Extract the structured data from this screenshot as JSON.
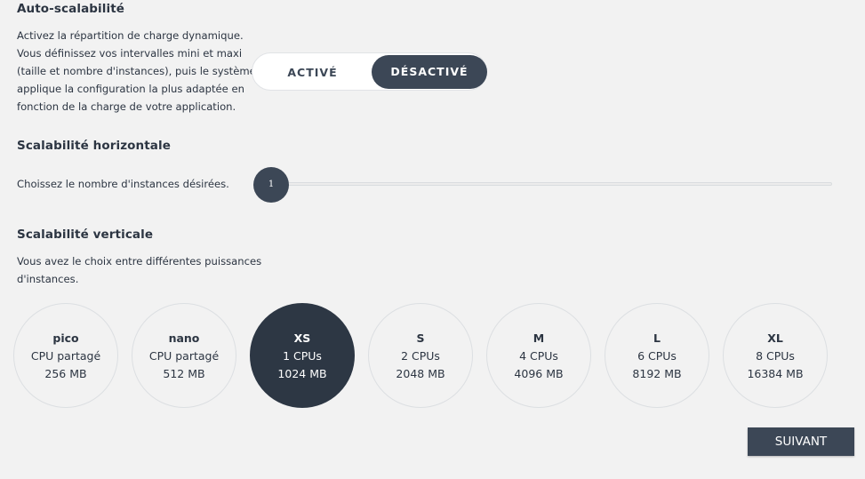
{
  "auto": {
    "title": "Auto-scalabilité",
    "desc_lines": [
      "Activez la répartition de charge dynamique.",
      "Vous définissez vos intervalles mini et maxi",
      "(taille et nombre d'instances), puis le système",
      "applique la configuration la plus adaptée en",
      "fonction de la charge de votre application."
    ],
    "toggle_on_label": "ACTIVÉ",
    "toggle_off_label": "DÉSACTIVÉ",
    "selected": "DÉSACTIVÉ"
  },
  "horizontal": {
    "title": "Scalabilité horizontale",
    "desc": "Choissez le nombre d'instances désirées.",
    "value": "1"
  },
  "vertical": {
    "title": "Scalabilité verticale",
    "desc_lines": [
      "Vous avez le choix entre différentes puissances",
      "d'instances."
    ],
    "sizes": [
      {
        "name": "pico",
        "cpu": "CPU partagé",
        "mem": "256 MB"
      },
      {
        "name": "nano",
        "cpu": "CPU partagé",
        "mem": "512 MB"
      },
      {
        "name": "XS",
        "cpu": "1 CPUs",
        "mem": "1024 MB"
      },
      {
        "name": "S",
        "cpu": "2 CPUs",
        "mem": "2048 MB"
      },
      {
        "name": "M",
        "cpu": "4 CPUs",
        "mem": "4096 MB"
      },
      {
        "name": "L",
        "cpu": "6 CPUs",
        "mem": "8192 MB"
      },
      {
        "name": "XL",
        "cpu": "8 CPUs",
        "mem": "16384 MB"
      }
    ],
    "selected": "XS"
  },
  "actions": {
    "next_label": "SUIVANT"
  },
  "colors": {
    "accent": "#3c4756",
    "selected_bg": "#2d3744",
    "background": "#f2f2f2"
  }
}
